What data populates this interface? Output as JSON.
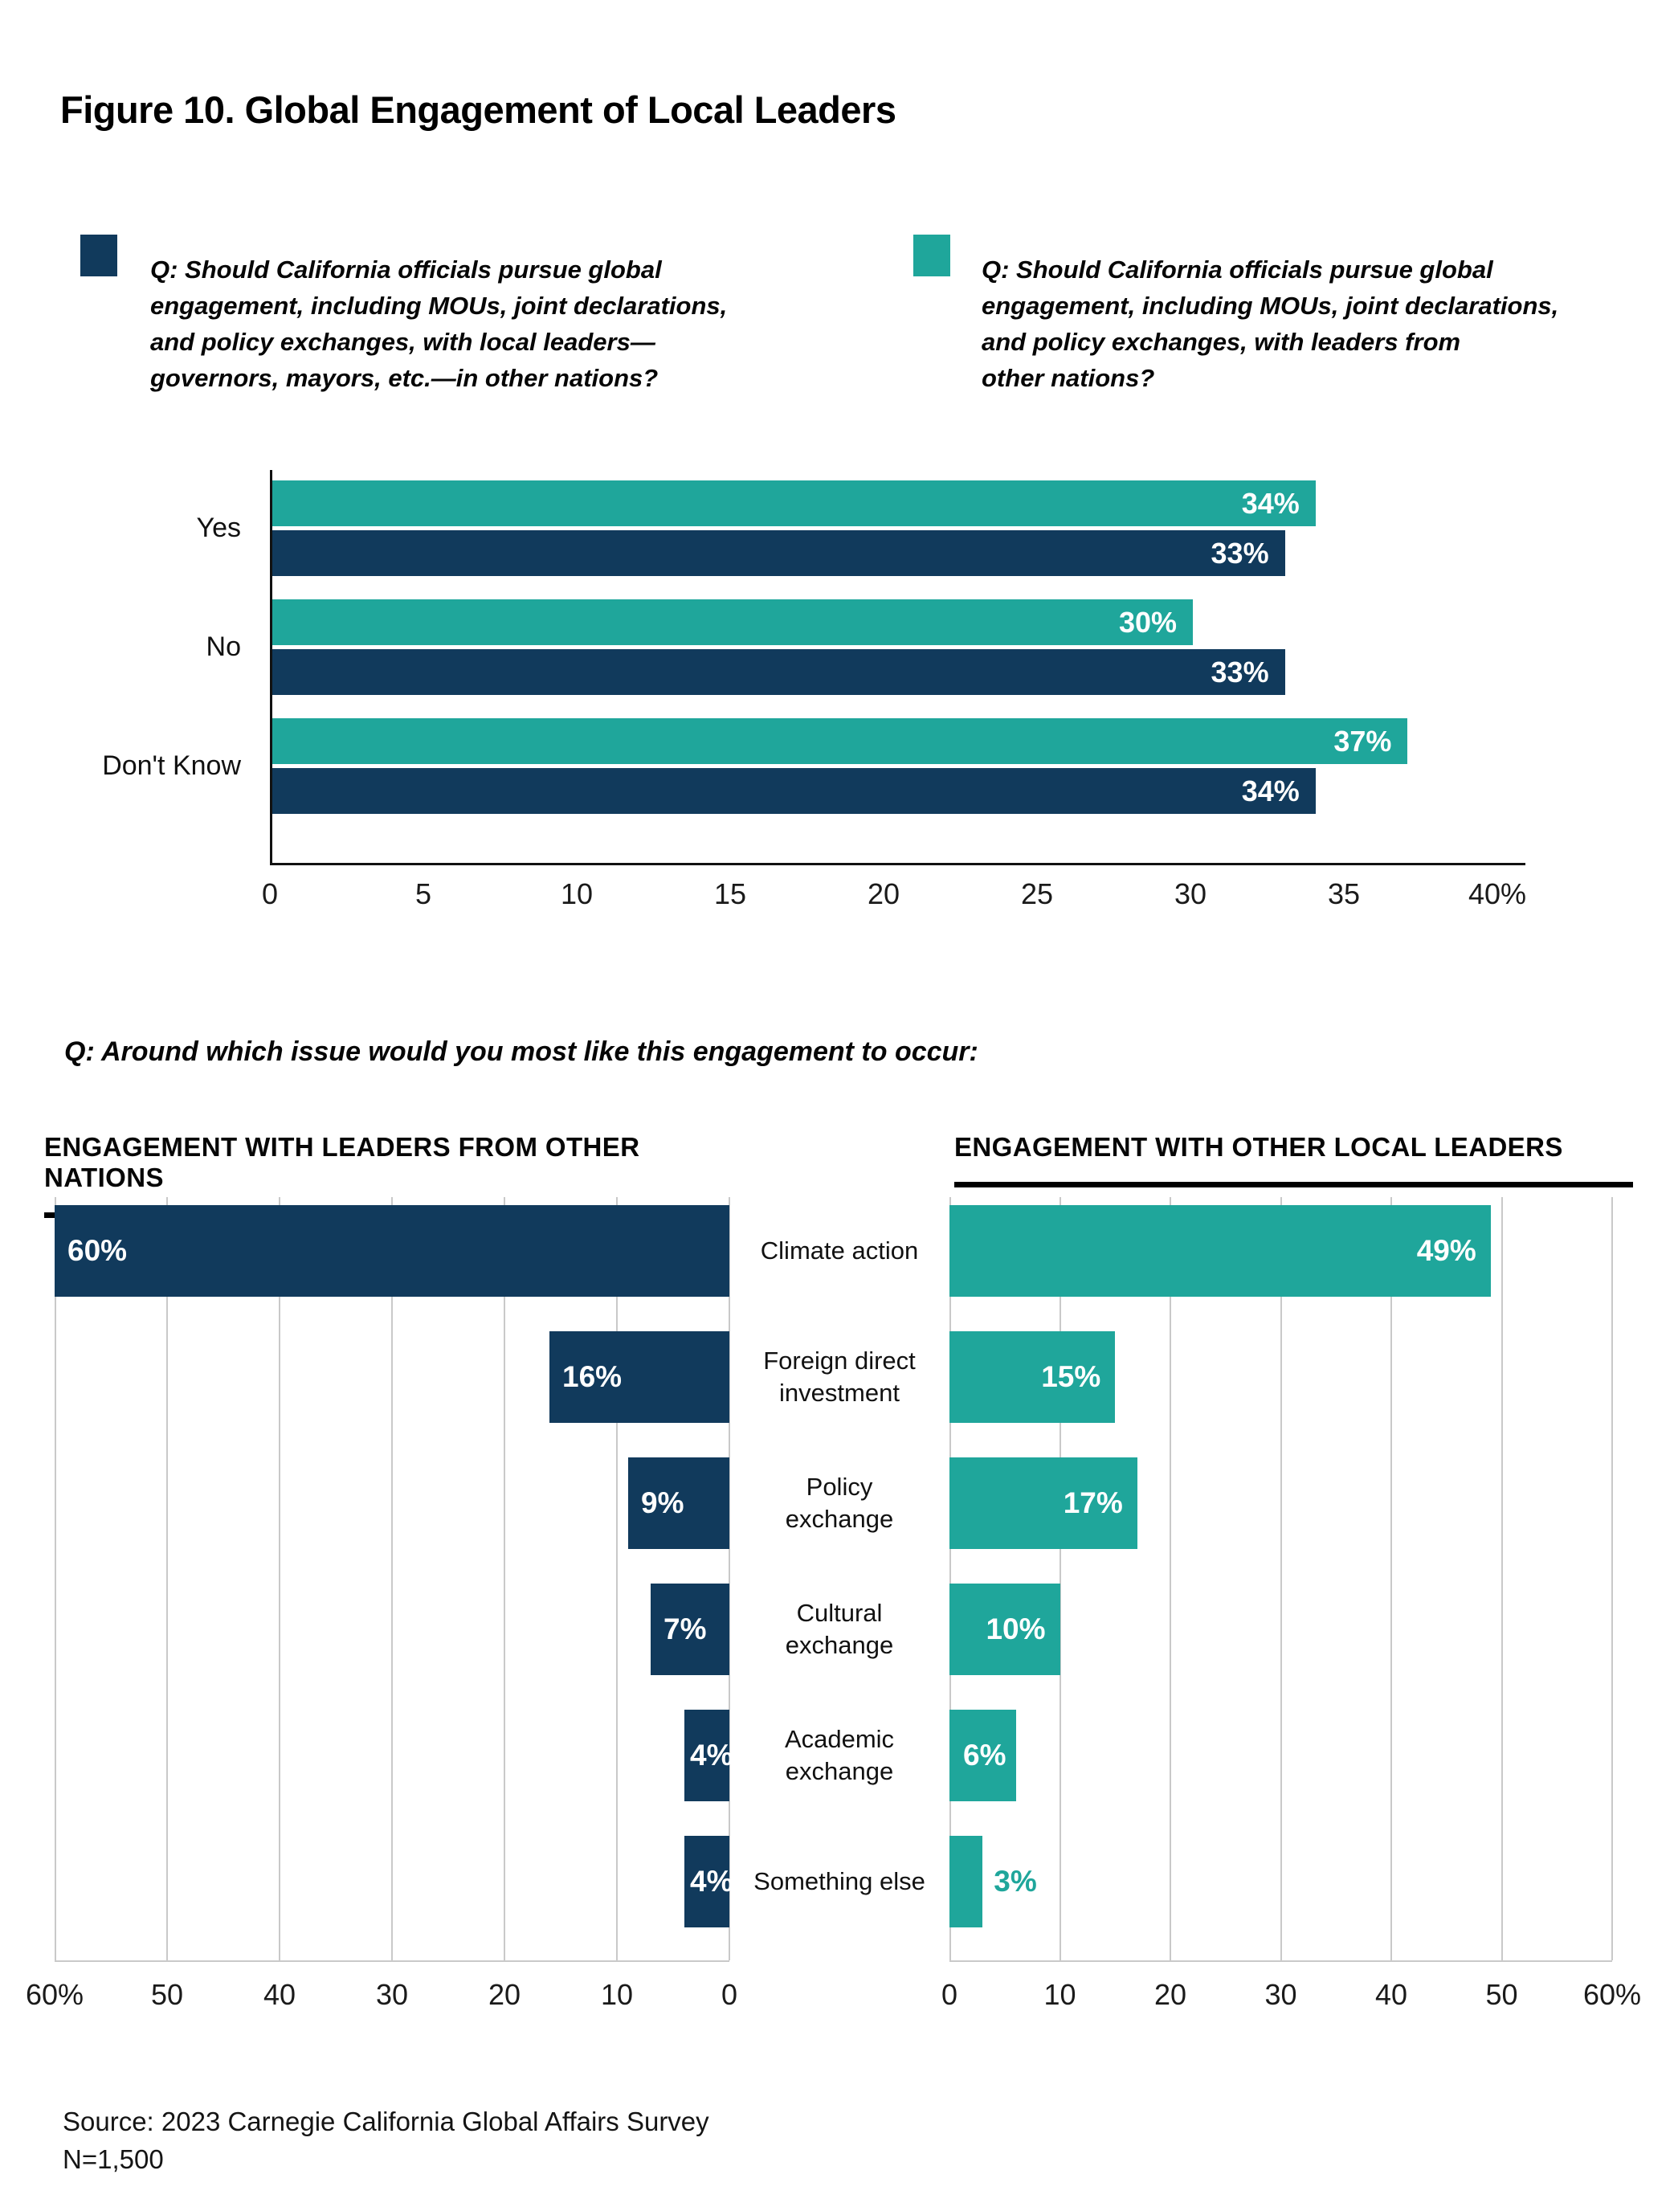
{
  "figure_title": "Figure 10. Global Engagement of Local Leaders",
  "legend": {
    "items": [
      {
        "id": "navy",
        "color": "#113A5C",
        "text": "Q: Should California officials pursue global\nengagement, including MOUs, joint declarations,\nand policy exchanges, with local leaders—\ngovernors, mayors, etc.—in other nations?"
      },
      {
        "id": "teal",
        "color": "#1FA69B",
        "text": "Q: Should California officials pursue global\nengagement, including MOUs, joint declarations,\nand policy exchanges, with leaders from\nother nations?"
      }
    ]
  },
  "question_issue": "Q: Around which issue would you most like this engagement to occur:",
  "source": {
    "line1": "Source: 2023 Carnegie California Global Affairs Survey",
    "line2": "N=1,500"
  },
  "chart_data": [
    {
      "id": "global-engagement-support",
      "type": "bar",
      "orientation": "horizontal-grouped",
      "categories": [
        "Yes",
        "No",
        "Don't Know"
      ],
      "series": [
        {
          "name": "Engagement with leaders from other nations",
          "color": "#1FA69B",
          "values": [
            34,
            30,
            37
          ],
          "labels": [
            "34%",
            "30%",
            "37%"
          ]
        },
        {
          "name": "Engagement with local leaders in other nations",
          "color": "#113A5C",
          "values": [
            33,
            33,
            34
          ],
          "labels": [
            "33%",
            "33%",
            "34%"
          ]
        }
      ],
      "xlim": [
        0,
        40
      ],
      "grid": false,
      "ticks": [
        "0",
        "5",
        "10",
        "15",
        "20",
        "25",
        "30",
        "35",
        "40%"
      ],
      "tick_values": [
        0,
        5,
        10,
        15,
        20,
        25,
        30,
        35,
        40
      ]
    },
    {
      "id": "engagement-with-leaders-from-other-nations",
      "title": "ENGAGEMENT WITH LEADERS FROM OTHER NATIONS",
      "type": "bar",
      "orientation": "horizontal-right-anchored",
      "color": "#113A5C",
      "categories": [
        "Climate action",
        "Foreign direct investment",
        "Policy exchange",
        "Cultural exchange",
        "Academic exchange",
        "Something else"
      ],
      "categories_display": [
        "Climate action",
        "Foreign direct\ninvestment",
        "Policy\nexchange",
        "Cultural\nexchange",
        "Academic\nexchange",
        "Something else"
      ],
      "values": [
        60,
        16,
        9,
        7,
        4,
        4
      ],
      "labels": [
        "60%",
        "16%",
        "9%",
        "7%",
        "4%",
        "4%"
      ],
      "xlim": [
        60,
        0
      ],
      "grid": true,
      "ticks": [
        "60%",
        "50",
        "40",
        "30",
        "20",
        "10",
        "0"
      ],
      "tick_values": [
        60,
        50,
        40,
        30,
        20,
        10,
        0
      ]
    },
    {
      "id": "engagement-with-other-local-leaders",
      "title": "ENGAGEMENT WITH OTHER LOCAL LEADERS",
      "type": "bar",
      "orientation": "horizontal-left-anchored",
      "color": "#1FA69B",
      "categories": [
        "Climate action",
        "Foreign direct investment",
        "Policy exchange",
        "Cultural exchange",
        "Academic exchange",
        "Something else"
      ],
      "values": [
        49,
        15,
        17,
        10,
        6,
        3
      ],
      "labels": [
        "49%",
        "15%",
        "17%",
        "10%",
        "6%",
        "3%"
      ],
      "xlim": [
        0,
        60
      ],
      "grid": true,
      "ticks": [
        "0",
        "10",
        "20",
        "30",
        "40",
        "50",
        "60%"
      ],
      "tick_values": [
        0,
        10,
        20,
        30,
        40,
        50,
        60
      ]
    }
  ]
}
